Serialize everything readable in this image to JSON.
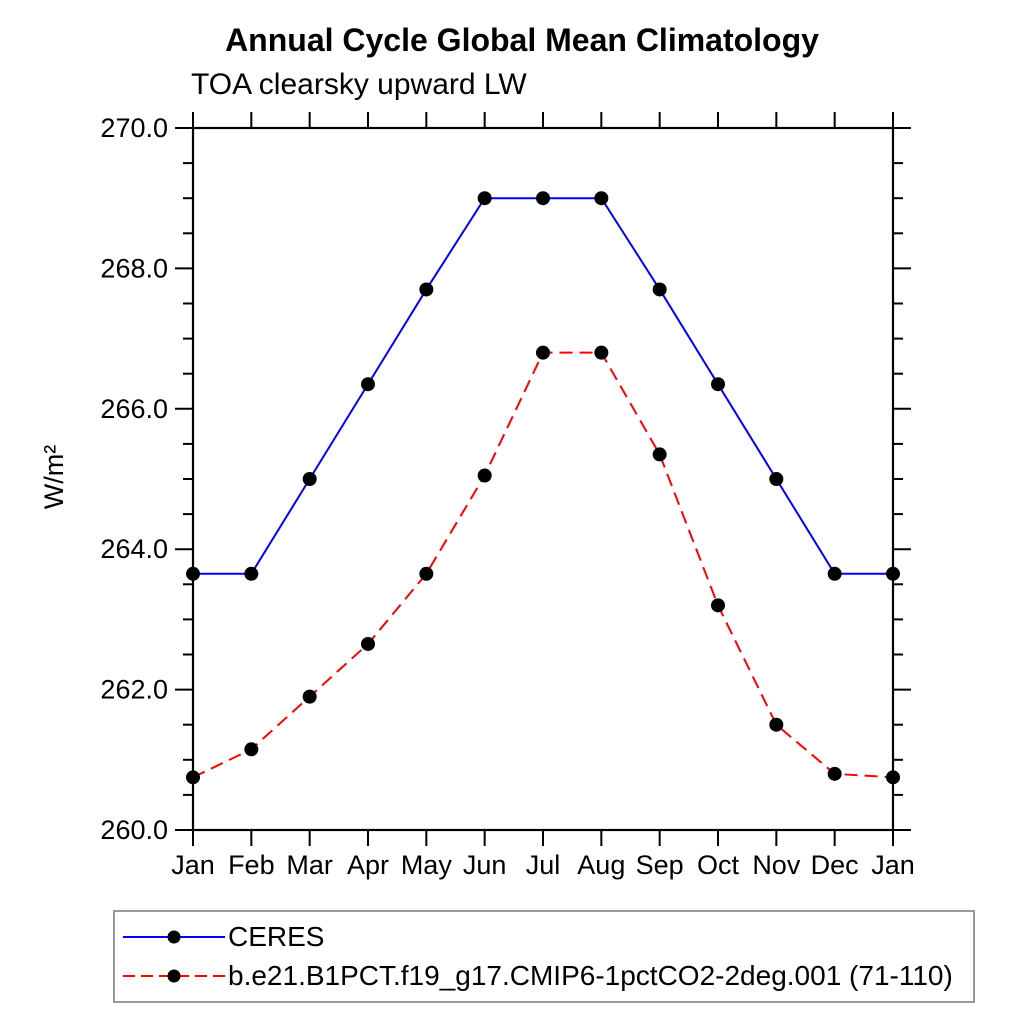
{
  "title": "Annual Cycle Global Mean Climatology",
  "subtitle": "TOA clearsky upward LW",
  "chart_data": {
    "type": "line",
    "title": "Annual Cycle Global Mean Climatology",
    "subtitle": "TOA clearsky upward LW",
    "xlabel": "",
    "ylabel": "W/m²",
    "x_tick_labels": [
      "Jan",
      "Feb",
      "Mar",
      "Apr",
      "May",
      "Jun",
      "Jul",
      "Aug",
      "Sep",
      "Oct",
      "Nov",
      "Dec",
      "Jan"
    ],
    "y_ticks": [
      260.0,
      262.0,
      264.0,
      266.0,
      268.0,
      270.0
    ],
    "y_tick_labels": [
      "260.0",
      "262.0",
      "264.0",
      "266.0",
      "268.0",
      "270.0"
    ],
    "ylim": [
      260.0,
      270.0
    ],
    "y_minor_step": 0.5,
    "grid": false,
    "frame_color": "#000000",
    "legend_position": "bottom",
    "series": [
      {
        "name": "CERES",
        "color": "#0000ff",
        "style": "solid",
        "marker": "circle",
        "marker_color": "#000000",
        "values": [
          263.65,
          263.65,
          265.0,
          266.35,
          267.7,
          269.0,
          269.0,
          269.0,
          267.7,
          266.35,
          265.0,
          263.65,
          263.65
        ]
      },
      {
        "name": "b.e21.B1PCT.f19_g17.CMIP6-1pctCO2-2deg.001 (71-110)",
        "color": "#ff0000",
        "style": "dashed",
        "marker": "circle",
        "marker_color": "#000000",
        "values": [
          260.75,
          261.15,
          261.9,
          262.65,
          263.65,
          265.05,
          266.8,
          266.8,
          265.35,
          263.2,
          261.5,
          260.8,
          260.75
        ]
      }
    ]
  }
}
